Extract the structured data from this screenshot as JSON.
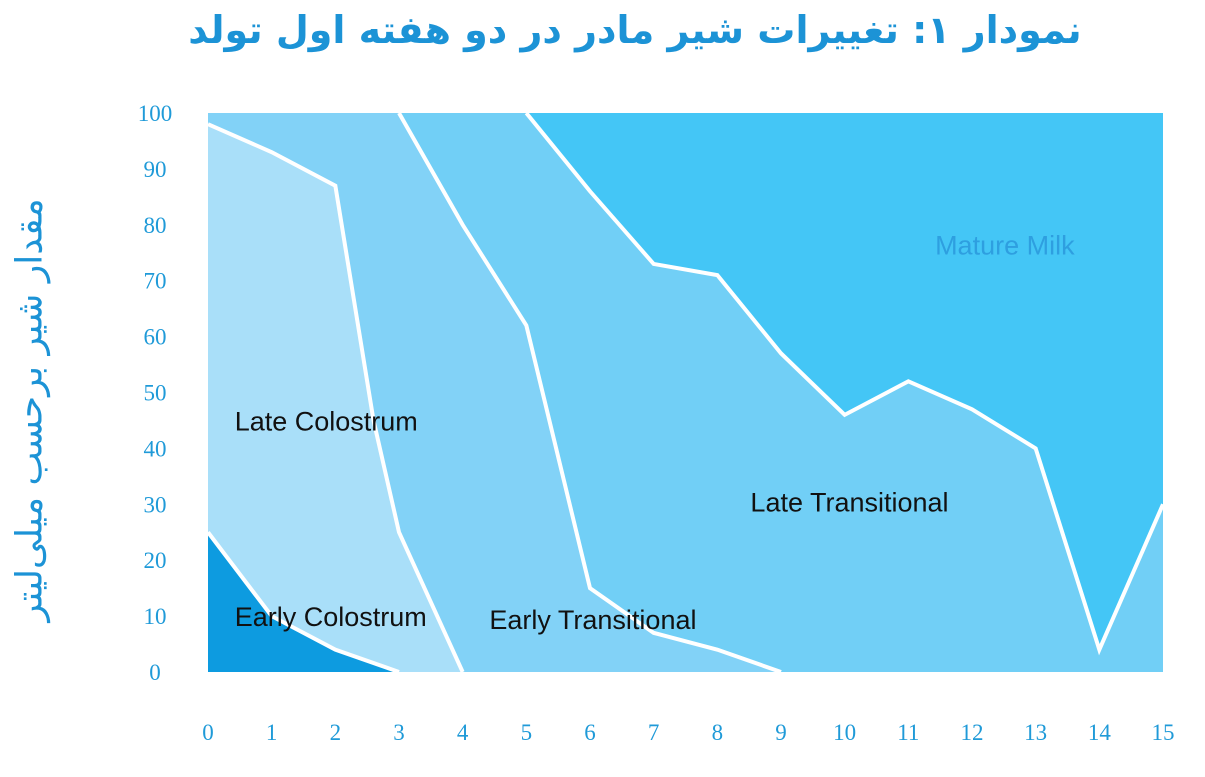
{
  "chart_data": {
    "type": "area",
    "title": "نمودار ۱: تغییرات شیر مادر در دو هفته اول تولد",
    "ylabel": "مقدار شیر برحسب میلی‌لیتر",
    "xlabel": "",
    "xlim": [
      0,
      15
    ],
    "ylim": [
      0,
      100
    ],
    "x_ticks": [
      "0",
      "1",
      "2",
      "3",
      "4",
      "5",
      "6",
      "7",
      "8",
      "9",
      "10",
      "11",
      "12",
      "13",
      "14",
      "15"
    ],
    "y_ticks": [
      "0",
      "10",
      "20",
      "30",
      "40",
      "50",
      "60",
      "70",
      "80",
      "90",
      "100"
    ],
    "grid": false,
    "regions": [
      {
        "name": "Early Colostrum",
        "color": "#0d9be0",
        "label_at": [
          0.2,
          10
        ]
      },
      {
        "name": "Late Colostrum",
        "color": "#a9dff9",
        "label_at": [
          0.2,
          45
        ]
      },
      {
        "name": "Early Transitional",
        "color": "#82d2f7",
        "label_at": [
          4.2,
          9.5
        ]
      },
      {
        "name": "Late Transitional",
        "color": "#71cff6",
        "label_at": [
          8.3,
          30.5
        ]
      },
      {
        "name": "Mature Milk",
        "color": "#44c6f6",
        "label_at": [
          11.2,
          76.5
        ],
        "label_color": "#2e9fe0"
      }
    ],
    "boundaries": [
      {
        "between": [
          "Early Colostrum",
          "Late Colostrum"
        ],
        "x": [
          0,
          1,
          2,
          3
        ],
        "y": [
          25,
          10,
          4,
          0
        ]
      },
      {
        "between": [
          "Late Colostrum",
          "Early Transitional"
        ],
        "x": [
          0,
          1,
          2,
          2.6,
          3,
          4
        ],
        "y": [
          98,
          93,
          87,
          45,
          25,
          0
        ]
      },
      {
        "between": [
          "Early Transitional",
          "Late Transitional"
        ],
        "x": [
          3,
          4,
          5,
          6,
          7,
          8,
          9
        ],
        "y": [
          100,
          80,
          62,
          15,
          7,
          4,
          0
        ]
      },
      {
        "between": [
          "Late Transitional",
          "Mature Milk"
        ],
        "x": [
          5,
          6,
          7,
          8,
          9,
          10,
          11,
          12,
          13,
          14,
          15
        ],
        "y": [
          100,
          86,
          73,
          71,
          57,
          46,
          52,
          47,
          40,
          4,
          30
        ]
      }
    ]
  }
}
